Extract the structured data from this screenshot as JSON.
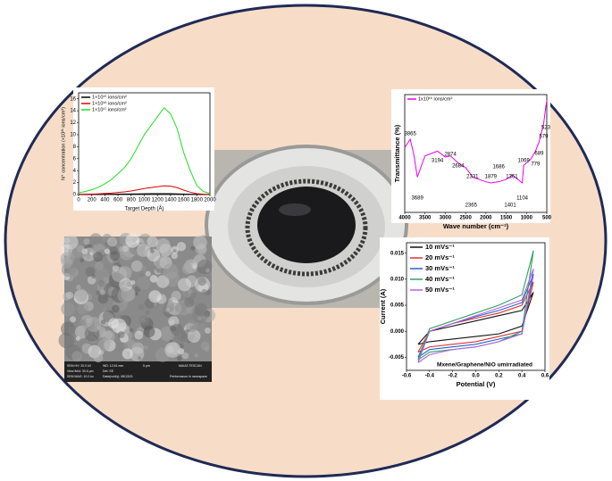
{
  "chart_data": [
    {
      "type": "line",
      "x": [
        0,
        100,
        200,
        300,
        400,
        500,
        600,
        700,
        800,
        900,
        1000,
        1100,
        1200,
        1300,
        1400,
        1500,
        1600,
        1700,
        1800,
        1900,
        2000
      ],
      "series": [
        {
          "name": "1×10¹⁵ ions/cm²",
          "color": "#000000",
          "values": [
            0.01,
            0.02,
            0.03,
            0.04,
            0.05,
            0.06,
            0.07,
            0.09,
            0.1,
            0.12,
            0.13,
            0.14,
            0.15,
            0.15,
            0.14,
            0.12,
            0.08,
            0.05,
            0.03,
            0.02,
            0.01
          ]
        },
        {
          "name": "1×10¹⁶ ions/cm²",
          "color": "#e00000",
          "values": [
            0.03,
            0.05,
            0.08,
            0.12,
            0.18,
            0.25,
            0.35,
            0.45,
            0.6,
            0.8,
            1.0,
            1.15,
            1.3,
            1.45,
            1.4,
            1.15,
            0.75,
            0.4,
            0.15,
            0.05,
            0.02
          ]
        },
        {
          "name": "1×10¹⁷ ions/cm²",
          "color": "#22dd22",
          "values": [
            0.3,
            0.5,
            0.8,
            1.2,
            1.8,
            2.5,
            3.5,
            4.5,
            6,
            8,
            10,
            11.5,
            13,
            14.5,
            13.5,
            11,
            7,
            4,
            1.5,
            0.5,
            0.2
          ]
        }
      ],
      "x_label": "Target Depth (Å)",
      "y_label": "N⁺ concentration (×10²¹ ions/cm³)",
      "xlim": [
        0,
        2000
      ],
      "xticks": [
        0,
        200,
        400,
        600,
        800,
        1000,
        1200,
        1400,
        1600,
        1800,
        2000
      ],
      "ylim": [
        0,
        17
      ],
      "yticks": [
        0,
        2,
        4,
        6,
        8,
        10,
        12,
        14,
        16
      ],
      "legend": "upper left"
    },
    {
      "type": "line",
      "x": [
        4000,
        3865,
        3780,
        3689,
        3500,
        3194,
        3000,
        2874,
        2684,
        2500,
        2365,
        2331,
        2000,
        1879,
        1686,
        1500,
        1401,
        1361,
        1104,
        1069,
        900,
        779,
        689,
        579,
        523,
        500
      ],
      "series": [
        {
          "name": "1x10¹⁶ ions/cm²",
          "color": "#ee00ee",
          "values": [
            55,
            62,
            50,
            30,
            48,
            52,
            47,
            48,
            42,
            38,
            32,
            30,
            26,
            25,
            26,
            28,
            30,
            32,
            25,
            40,
            45,
            52,
            60,
            75,
            90,
            95
          ]
        }
      ],
      "x_label": "Wave number (cm⁻¹)",
      "y_label": "Transmittance (%)",
      "xlim": [
        4000,
        500
      ],
      "xticks": [
        4000,
        3500,
        3000,
        2500,
        2000,
        1500,
        1000,
        500
      ],
      "ylim": [
        0,
        100
      ],
      "legend": "upper left",
      "peaks": [
        3865,
        3689,
        3194,
        2874,
        2684,
        2365,
        2331,
        1879,
        1686,
        1361,
        1401,
        1104,
        1069,
        779,
        689,
        579,
        523
      ]
    },
    {
      "type": "line",
      "series": [
        {
          "name": "10 mVs⁻¹",
          "color": "#111111",
          "x": [
            -0.5,
            -0.4,
            -0.2,
            0,
            0.2,
            0.4,
            0.5,
            0.4,
            0.2,
            0,
            -0.2,
            -0.4,
            -0.5
          ],
          "values": [
            -0.0025,
            -0.002,
            -0.0015,
            -0.001,
            -0.0005,
            0.001,
            0.0075,
            0.004,
            0.003,
            0.002,
            0.001,
            0.0,
            -0.0025
          ]
        },
        {
          "name": "20 mVs⁻¹",
          "color": "#e03030",
          "x": [
            -0.5,
            -0.4,
            -0.2,
            0,
            0.2,
            0.4,
            0.5,
            0.4,
            0.2,
            0,
            -0.2,
            -0.4,
            -0.5
          ],
          "values": [
            -0.004,
            -0.003,
            -0.0025,
            -0.002,
            -0.001,
            0.0,
            0.0095,
            0.005,
            0.0035,
            0.0025,
            0.0015,
            0.0,
            -0.004
          ]
        },
        {
          "name": "30 mVs⁻¹",
          "color": "#2060d0",
          "x": [
            -0.5,
            -0.4,
            -0.2,
            0,
            0.2,
            0.4,
            0.5,
            0.4,
            0.2,
            0,
            -0.2,
            -0.4,
            -0.5
          ],
          "values": [
            -0.005,
            -0.0035,
            -0.003,
            -0.0025,
            -0.0015,
            -0.0005,
            0.011,
            0.0055,
            0.004,
            0.0028,
            0.0015,
            0.0,
            -0.005
          ]
        },
        {
          "name": "40 mVs⁻¹",
          "color": "#30a060",
          "x": [
            -0.5,
            -0.4,
            -0.2,
            0,
            0.2,
            0.4,
            0.5,
            0.4,
            0.2,
            0,
            -0.2,
            -0.4,
            -0.5
          ],
          "values": [
            -0.0055,
            -0.004,
            -0.0035,
            -0.003,
            -0.002,
            0.0,
            0.0155,
            0.007,
            0.005,
            0.0035,
            0.002,
            0.0005,
            -0.0055
          ]
        },
        {
          "name": "50 mVs⁻¹",
          "color": "#b060e0",
          "x": [
            -0.5,
            -0.4,
            -0.2,
            0,
            0.2,
            0.4,
            0.5,
            0.4,
            0.2,
            0,
            -0.2,
            -0.4,
            -0.5
          ],
          "values": [
            -0.006,
            -0.0045,
            -0.0035,
            -0.003,
            -0.002,
            -0.0005,
            0.012,
            0.006,
            0.0045,
            0.003,
            0.0015,
            0.0,
            -0.006
          ]
        }
      ],
      "x_label": "Potential (V)",
      "y_label": "Current (A)",
      "annotation": "Mxene/Graphene/NiO umirradiated",
      "xlim": [
        -0.6,
        0.6
      ],
      "xticks": [
        -0.6,
        -0.4,
        -0.2,
        {
          "value": 0,
          "label": "0.0"
        },
        0.2,
        0.4,
        0.6
      ],
      "ylim": [
        -0.0075,
        0.017
      ],
      "yticks": [
        -0.005,
        {
          "value": 0,
          "label": "0.000"
        },
        0.005,
        {
          "value": 0.01,
          "label": "0.010"
        },
        0.015
      ],
      "legend": "upper left"
    }
  ],
  "sem_labels": [
    "SEM HV: 20.0 kV",
    "WD: 12.61 mm",
    "View field: 30.6 µm",
    "Det: SE",
    "SEM MAG: 10.0 kx",
    "Date(m/d/y): 08/13/21",
    "5 µm",
    "MAIA3 TESCAN",
    "Performance in nanospace"
  ]
}
